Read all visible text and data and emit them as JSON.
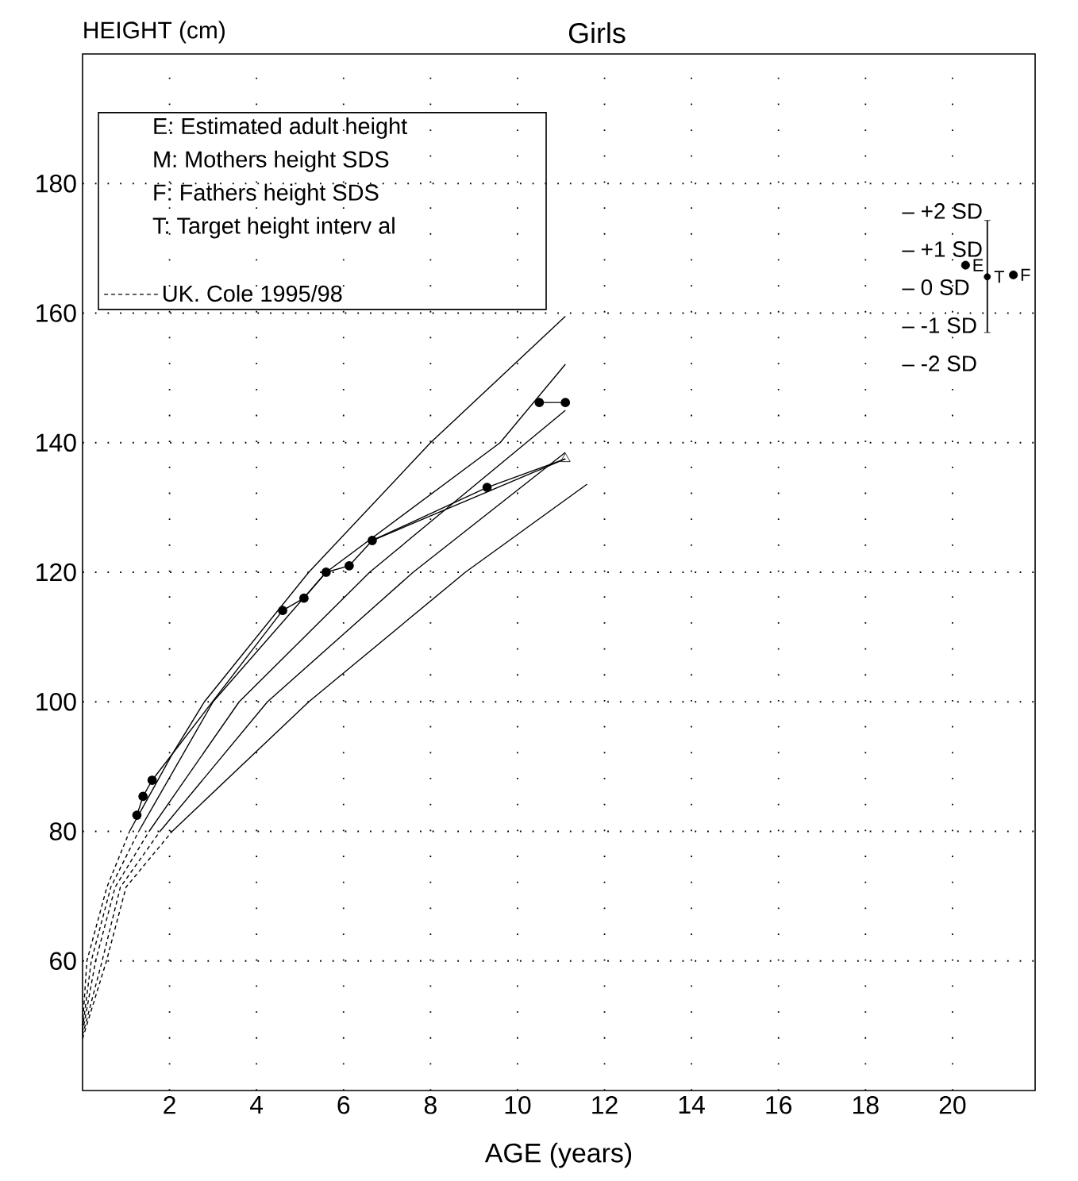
{
  "chart_data": {
    "type": "line",
    "title": "Girls",
    "xlabel": "AGE (years)",
    "ylabel": "HEIGHT (cm)",
    "xlim": [
      0,
      21.9
    ],
    "ylim": [
      40,
      200
    ],
    "xticks": [
      2,
      4,
      6,
      8,
      10,
      12,
      14,
      16,
      18,
      20
    ],
    "yticks": [
      60,
      80,
      100,
      120,
      140,
      160,
      180
    ],
    "grid": true,
    "legend": "top left",
    "series": [
      {
        "name": "UK. Cole 1995/98",
        "color": "#000000",
        "line_style": "dashed",
        "x": [
          0,
          0.1,
          0.56,
          1.08
        ],
        "values": [
          50,
          60,
          71.4,
          80
        ]
      },
      {
        "color": "#000000",
        "line_style": "dashed",
        "x": [
          0,
          0.2,
          0.65,
          1.29
        ],
        "values": [
          49.5,
          60,
          71.4,
          80
        ]
      },
      {
        "color": "#000000",
        "line_style": "dashed",
        "x": [
          0,
          0.3,
          0.75,
          1.53
        ],
        "values": [
          49,
          60,
          71.4,
          80
        ]
      },
      {
        "color": "#000000",
        "line_style": "dashed",
        "x": [
          0,
          0.45,
          0.87,
          1.78
        ],
        "values": [
          48.5,
          60,
          71.4,
          80
        ]
      },
      {
        "color": "#000000",
        "line_style": "dashed",
        "x": [
          0,
          0.55,
          1.0,
          2.06
        ],
        "values": [
          48,
          60,
          71.4,
          80
        ]
      },
      {
        "color": "#000000",
        "line_style": "solid",
        "x": [
          1.08,
          2.06,
          2.8,
          5.2,
          8.0,
          11.1
        ],
        "values": [
          80,
          91.9,
          100,
          120,
          140,
          159.5
        ]
      },
      {
        "color": "#000000",
        "line_style": "solid",
        "x": [
          1.29,
          3.0,
          5.6,
          9.6,
          11.1
        ],
        "values": [
          80,
          100,
          120,
          140,
          152.1
        ]
      },
      {
        "color": "#000000",
        "line_style": "solid",
        "x": [
          1.53,
          3.6,
          6.6,
          11.1
        ],
        "values": [
          80,
          100,
          120,
          145
        ]
      },
      {
        "color": "#000000",
        "line_style": "solid",
        "x": [
          1.78,
          4.25,
          7.6,
          11.1
        ],
        "values": [
          80,
          100,
          120,
          138.5
        ]
      },
      {
        "color": "#000000",
        "line_style": "solid",
        "x": [
          2.06,
          5.2,
          8.8,
          11.6
        ],
        "values": [
          80,
          100,
          120,
          133.6
        ]
      },
      {
        "color": "#000000",
        "line_style": "solid",
        "marker": "circle",
        "x": [
          1.25,
          1.39,
          1.6,
          4.6,
          5.09,
          5.6,
          6.13,
          6.66,
          9.3
        ],
        "values": [
          82.5,
          85.4,
          87.9,
          114.1,
          116.0,
          120.0,
          121.0,
          124.9,
          133.1
        ]
      },
      {
        "color": "#000000",
        "line_style": "solid",
        "x": [
          9.3,
          11.1
        ],
        "values": [
          133.1,
          137.5
        ]
      },
      {
        "color": "#000000",
        "line_style": "solid",
        "x": [
          6.66,
          11.1
        ],
        "values": [
          124.9,
          137.5
        ]
      },
      {
        "type": "scatter",
        "color": "#000000",
        "marker": "triangle",
        "x": [
          11.1
        ],
        "values": [
          137.5
        ]
      },
      {
        "color": "#000000",
        "line_style": "solid",
        "marker": "circle",
        "x": [
          10.5,
          11.1
        ],
        "values": [
          146.2,
          146.2
        ]
      },
      {
        "type": "scatter",
        "color": "#000000",
        "marker": "circle",
        "x": [
          20.3,
          21.4
        ],
        "values": [
          167.4,
          165.9
        ]
      },
      {
        "type": "scatter",
        "color": "#000000",
        "x": [
          20.8
        ],
        "values": [
          165.6
        ],
        "errors": [
          [
            157.0,
            174.3
          ]
        ]
      }
    ],
    "annotations": [
      "E: Estimated adult height",
      "M: Mothers height SDS",
      "F: Fathers height SDS",
      "T: Target height interv al",
      "– +2 SD",
      "– +1 SD",
      "– 0 SD",
      "– -1 SD",
      "– -2 SD",
      {
        "text": "E",
        "x": 20.3,
        "y": 167.4
      },
      {
        "text": "T",
        "x": 20.8,
        "y": 165.6
      },
      {
        "text": "F",
        "x": 21.4,
        "y": 165.9
      }
    ]
  }
}
